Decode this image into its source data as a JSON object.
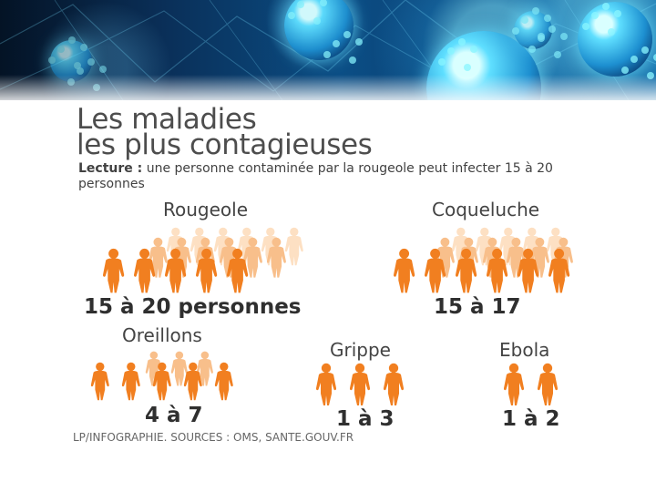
{
  "page": {
    "title_line_1": "Les maladies",
    "title_line_2": "les plus contagieuses",
    "lecture_label": "Lecture :",
    "lecture_text": "une personne contaminée par la rougeole peut infecter 15 à 20 personnes"
  },
  "diseases": [
    {
      "name": "Rougeole",
      "count": "15 à 20 personnes"
    },
    {
      "name": "Coqueluche",
      "count": "15 à 17"
    },
    {
      "name": "Oreillons",
      "count": "4 à 7"
    },
    {
      "name": "Grippe",
      "count": "1 à 3"
    },
    {
      "name": "Ebola",
      "count": "1 à 2"
    }
  ],
  "source_line": "LP/INFOGRAPHIE.   SOURCES : OMS, SANTE.GOUV.FR",
  "colors": {
    "figure_orange": "#f17f20",
    "figure_light": "#f8bf8b",
    "figure_pale": "#fde0c3"
  },
  "icons": {
    "person": "person-figure-icon"
  }
}
